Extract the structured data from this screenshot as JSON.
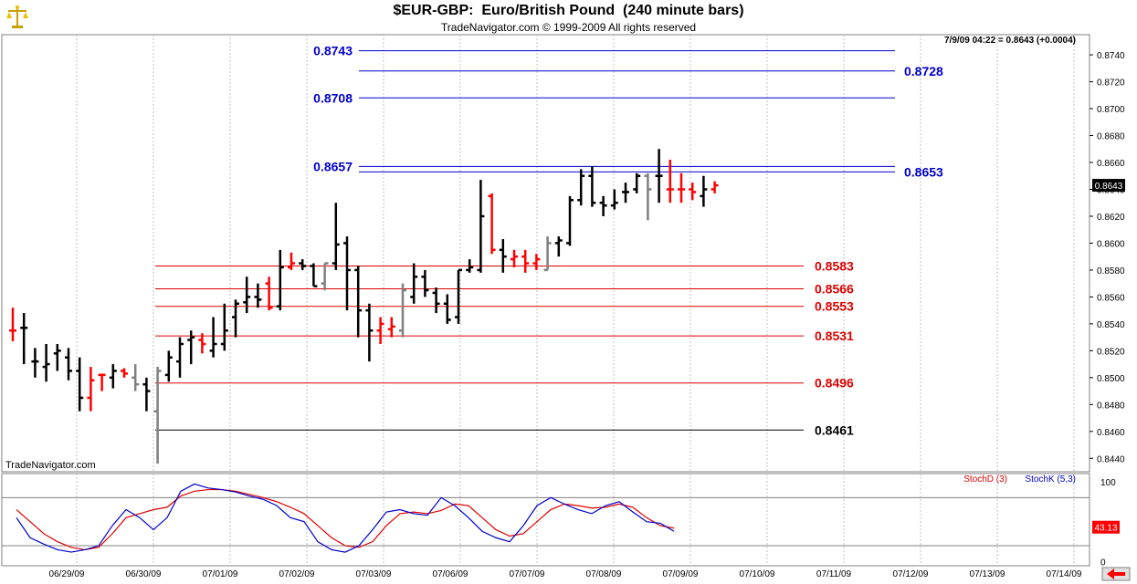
{
  "header": {
    "title": "$EUR-GBP:  Euro/British Pound  (240 minute bars)",
    "copyright": "TradeNavigator.com © 1999-2009 All rights reserved",
    "watermark": "TradeNavigator.com",
    "last_quote": "7/9/09 04:22 = 0.8643 (+0.0004)",
    "price_badge": "0.8643",
    "stoch_badge": "43.13"
  },
  "colors": {
    "up_bar": "#000000",
    "down_bar": "#ff0000",
    "neutral_bar": "#808080",
    "resistance": "#0000cc",
    "support": "#dd0000",
    "stoch_d": "#dd0000",
    "stoch_k": "#0000cc",
    "grid": "#c0c0c0",
    "badge_bg": "#ff0000"
  },
  "chart_data": [
    {
      "type": "ohlc",
      "x_dates": [
        "06/29/09",
        "06/30/09",
        "07/01/09",
        "07/02/09",
        "07/03/09",
        "07/06/09",
        "07/07/09",
        "07/08/09",
        "07/09/09",
        "07/10/09",
        "07/11/09",
        "07/12/09",
        "07/13/09",
        "07/14/09"
      ],
      "ylim": [
        0.843,
        0.8755
      ],
      "yticks": [
        "0.8440",
        "0.8460",
        "0.8480",
        "0.8500",
        "0.8520",
        "0.8540",
        "0.8560",
        "0.8580",
        "0.8600",
        "0.8620",
        "0.8640",
        "0.8660",
        "0.8680",
        "0.8700",
        "0.8720",
        "0.8740"
      ],
      "grid": true,
      "bars": [
        {
          "o": 0.8535,
          "h": 0.8552,
          "l": 0.8527,
          "c": 0.8535,
          "col": "r"
        },
        {
          "o": 0.8537,
          "h": 0.8548,
          "l": 0.851,
          "c": 0.8537,
          "col": "k"
        },
        {
          "o": 0.8512,
          "h": 0.8522,
          "l": 0.85,
          "c": 0.8512,
          "col": "k"
        },
        {
          "o": 0.8508,
          "h": 0.8525,
          "l": 0.8497,
          "c": 0.851,
          "col": "k"
        },
        {
          "o": 0.8518,
          "h": 0.8525,
          "l": 0.8505,
          "c": 0.852,
          "col": "k"
        },
        {
          "o": 0.8515,
          "h": 0.8522,
          "l": 0.8498,
          "c": 0.8505,
          "col": "k"
        },
        {
          "o": 0.8505,
          "h": 0.8515,
          "l": 0.8475,
          "c": 0.8485,
          "col": "k"
        },
        {
          "o": 0.8485,
          "h": 0.8508,
          "l": 0.8475,
          "c": 0.8498,
          "col": "r"
        },
        {
          "o": 0.8502,
          "h": 0.8503,
          "l": 0.849,
          "c": 0.8502,
          "col": "r"
        },
        {
          "o": 0.85,
          "h": 0.851,
          "l": 0.8492,
          "c": 0.8505,
          "col": "k"
        },
        {
          "o": 0.8505,
          "h": 0.8507,
          "l": 0.85,
          "c": 0.8503,
          "col": "r"
        },
        {
          "o": 0.85,
          "h": 0.851,
          "l": 0.849,
          "c": 0.8495,
          "col": "g"
        },
        {
          "o": 0.8495,
          "h": 0.85,
          "l": 0.8475,
          "c": 0.849,
          "col": "k"
        },
        {
          "o": 0.8475,
          "h": 0.8508,
          "l": 0.8436,
          "c": 0.8505,
          "col": "g"
        },
        {
          "o": 0.8502,
          "h": 0.852,
          "l": 0.8497,
          "c": 0.8515,
          "col": "k"
        },
        {
          "o": 0.8512,
          "h": 0.853,
          "l": 0.85,
          "c": 0.8525,
          "col": "k"
        },
        {
          "o": 0.8528,
          "h": 0.8535,
          "l": 0.851,
          "c": 0.853,
          "col": "k"
        },
        {
          "o": 0.8528,
          "h": 0.8533,
          "l": 0.8518,
          "c": 0.8525,
          "col": "r"
        },
        {
          "o": 0.852,
          "h": 0.8545,
          "l": 0.8515,
          "c": 0.8525,
          "col": "k"
        },
        {
          "o": 0.8525,
          "h": 0.8555,
          "l": 0.852,
          "c": 0.8535,
          "col": "k"
        },
        {
          "o": 0.8545,
          "h": 0.8558,
          "l": 0.853,
          "c": 0.8555,
          "col": "k"
        },
        {
          "o": 0.8556,
          "h": 0.8575,
          "l": 0.8548,
          "c": 0.856,
          "col": "k"
        },
        {
          "o": 0.856,
          "h": 0.857,
          "l": 0.8552,
          "c": 0.8558,
          "col": "k"
        },
        {
          "o": 0.857,
          "h": 0.8575,
          "l": 0.855,
          "c": 0.8552,
          "col": "r"
        },
        {
          "o": 0.8553,
          "h": 0.8595,
          "l": 0.855,
          "c": 0.8582,
          "col": "k"
        },
        {
          "o": 0.8582,
          "h": 0.8593,
          "l": 0.858,
          "c": 0.8585,
          "col": "r"
        },
        {
          "o": 0.8585,
          "h": 0.8588,
          "l": 0.858,
          "c": 0.8583,
          "col": "k"
        },
        {
          "o": 0.8583,
          "h": 0.8585,
          "l": 0.8568,
          "c": 0.8568,
          "col": "k"
        },
        {
          "o": 0.857,
          "h": 0.8585,
          "l": 0.8565,
          "c": 0.8585,
          "col": "g"
        },
        {
          "o": 0.8585,
          "h": 0.863,
          "l": 0.858,
          "c": 0.8599,
          "col": "k"
        },
        {
          "o": 0.86,
          "h": 0.8605,
          "l": 0.855,
          "c": 0.858,
          "col": "k"
        },
        {
          "o": 0.858,
          "h": 0.8583,
          "l": 0.853,
          "c": 0.855,
          "col": "k"
        },
        {
          "o": 0.855,
          "h": 0.8555,
          "l": 0.8512,
          "c": 0.8535,
          "col": "k"
        },
        {
          "o": 0.8535,
          "h": 0.8545,
          "l": 0.8525,
          "c": 0.854,
          "col": "r"
        },
        {
          "o": 0.8536,
          "h": 0.8545,
          "l": 0.853,
          "c": 0.8538,
          "col": "r"
        },
        {
          "o": 0.8535,
          "h": 0.857,
          "l": 0.853,
          "c": 0.8565,
          "col": "g"
        },
        {
          "o": 0.856,
          "h": 0.8585,
          "l": 0.8555,
          "c": 0.8575,
          "col": "k"
        },
        {
          "o": 0.8575,
          "h": 0.858,
          "l": 0.856,
          "c": 0.8565,
          "col": "k"
        },
        {
          "o": 0.8563,
          "h": 0.8567,
          "l": 0.8548,
          "c": 0.8555,
          "col": "k"
        },
        {
          "o": 0.8555,
          "h": 0.8562,
          "l": 0.854,
          "c": 0.8543,
          "col": "k"
        },
        {
          "o": 0.8545,
          "h": 0.858,
          "l": 0.854,
          "c": 0.858,
          "col": "k"
        },
        {
          "o": 0.858,
          "h": 0.8588,
          "l": 0.8578,
          "c": 0.8582,
          "col": "k"
        },
        {
          "o": 0.858,
          "h": 0.8647,
          "l": 0.8578,
          "c": 0.862,
          "col": "k"
        },
        {
          "o": 0.8635,
          "h": 0.8637,
          "l": 0.8592,
          "c": 0.8595,
          "col": "r"
        },
        {
          "o": 0.8595,
          "h": 0.8603,
          "l": 0.8578,
          "c": 0.859,
          "col": "k"
        },
        {
          "o": 0.8588,
          "h": 0.8595,
          "l": 0.8582,
          "c": 0.859,
          "col": "r"
        },
        {
          "o": 0.859,
          "h": 0.8595,
          "l": 0.8578,
          "c": 0.8585,
          "col": "r"
        },
        {
          "o": 0.8585,
          "h": 0.8592,
          "l": 0.858,
          "c": 0.8588,
          "col": "r"
        },
        {
          "o": 0.858,
          "h": 0.8605,
          "l": 0.858,
          "c": 0.86,
          "col": "g"
        },
        {
          "o": 0.86,
          "h": 0.8605,
          "l": 0.859,
          "c": 0.8602,
          "col": "k"
        },
        {
          "o": 0.86,
          "h": 0.8635,
          "l": 0.8598,
          "c": 0.8632,
          "col": "k"
        },
        {
          "o": 0.8632,
          "h": 0.8655,
          "l": 0.8628,
          "c": 0.865,
          "col": "k"
        },
        {
          "o": 0.865,
          "h": 0.8657,
          "l": 0.8627,
          "c": 0.863,
          "col": "k"
        },
        {
          "o": 0.863,
          "h": 0.8635,
          "l": 0.862,
          "c": 0.8628,
          "col": "k"
        },
        {
          "o": 0.8628,
          "h": 0.864,
          "l": 0.8625,
          "c": 0.863,
          "col": "k"
        },
        {
          "o": 0.8638,
          "h": 0.8645,
          "l": 0.863,
          "c": 0.8638,
          "col": "k"
        },
        {
          "o": 0.864,
          "h": 0.8652,
          "l": 0.8637,
          "c": 0.865,
          "col": "k"
        },
        {
          "o": 0.865,
          "h": 0.8652,
          "l": 0.8617,
          "c": 0.864,
          "col": "g"
        },
        {
          "o": 0.865,
          "h": 0.867,
          "l": 0.863,
          "c": 0.865,
          "col": "k"
        },
        {
          "o": 0.864,
          "h": 0.8662,
          "l": 0.863,
          "c": 0.864,
          "col": "r"
        },
        {
          "o": 0.864,
          "h": 0.8652,
          "l": 0.863,
          "c": 0.864,
          "col": "r"
        },
        {
          "o": 0.864,
          "h": 0.8645,
          "l": 0.8632,
          "c": 0.8638,
          "col": "r"
        },
        {
          "o": 0.8635,
          "h": 0.865,
          "l": 0.8627,
          "c": 0.864,
          "col": "k"
        },
        {
          "o": 0.864,
          "h": 0.8646,
          "l": 0.8637,
          "c": 0.8643,
          "col": "r"
        }
      ],
      "levels": [
        {
          "value": 0.8743,
          "label": "0.8743",
          "kind": "resistance",
          "label_side": "left",
          "x_start_date_idx": 0.0
        },
        {
          "value": 0.8728,
          "label": "0.8728",
          "kind": "resistance",
          "label_side": "right",
          "x_start_date_idx": 0.0
        },
        {
          "value": 0.8708,
          "label": "0.8708",
          "kind": "resistance",
          "label_side": "left",
          "x_start_date_idx": 0.0
        },
        {
          "value": 0.8657,
          "label": "0.8657",
          "kind": "resistance",
          "label_side": "left",
          "x_start_date_idx": 0.0
        },
        {
          "value": 0.8653,
          "label": "0.8653",
          "kind": "resistance",
          "label_side": "right",
          "x_start_date_idx": 0.0
        },
        {
          "value": 0.8583,
          "label": "0.8583",
          "kind": "support",
          "label_side": "right",
          "x_start_date_idx": 0.0
        },
        {
          "value": 0.8566,
          "label": "0.8566",
          "kind": "support",
          "label_side": "right",
          "x_start_date_idx": 0.0
        },
        {
          "value": 0.8553,
          "label": "0.8553",
          "kind": "support",
          "label_side": "right",
          "x_start_date_idx": 0.0
        },
        {
          "value": 0.8531,
          "label": "0.8531",
          "kind": "support",
          "label_side": "right",
          "x_start_date_idx": 0.0
        },
        {
          "value": 0.8496,
          "label": "0.8496",
          "kind": "support",
          "label_side": "right",
          "x_start_date_idx": 0.0
        },
        {
          "value": 0.8461,
          "label": "0.8461",
          "kind": "black",
          "label_side": "right",
          "x_start_date_idx": 0.0
        }
      ]
    },
    {
      "type": "line",
      "ylim": [
        -5,
        110
      ],
      "yticks": [
        "0",
        "100"
      ],
      "grid": true,
      "series": [
        {
          "name": "StochD (3)",
          "values": [
            65,
            50,
            35,
            25,
            18,
            15,
            18,
            35,
            55,
            60,
            65,
            68,
            82,
            88,
            90,
            90,
            88,
            84,
            80,
            75,
            68,
            60,
            45,
            30,
            20,
            18,
            25,
            45,
            60,
            62,
            60,
            64,
            72,
            70,
            55,
            40,
            32,
            35,
            50,
            65,
            72,
            70,
            67,
            68,
            72,
            68,
            55,
            45,
            42
          ]
        },
        {
          "name": "StochK (5,3)",
          "values": [
            55,
            30,
            22,
            15,
            12,
            15,
            20,
            45,
            65,
            55,
            40,
            55,
            88,
            97,
            92,
            90,
            87,
            82,
            78,
            70,
            55,
            50,
            25,
            15,
            12,
            20,
            40,
            62,
            65,
            60,
            58,
            80,
            70,
            55,
            38,
            30,
            25,
            45,
            70,
            80,
            72,
            65,
            60,
            70,
            75,
            62,
            50,
            48,
            38
          ]
        }
      ],
      "legend": "top-right"
    }
  ]
}
